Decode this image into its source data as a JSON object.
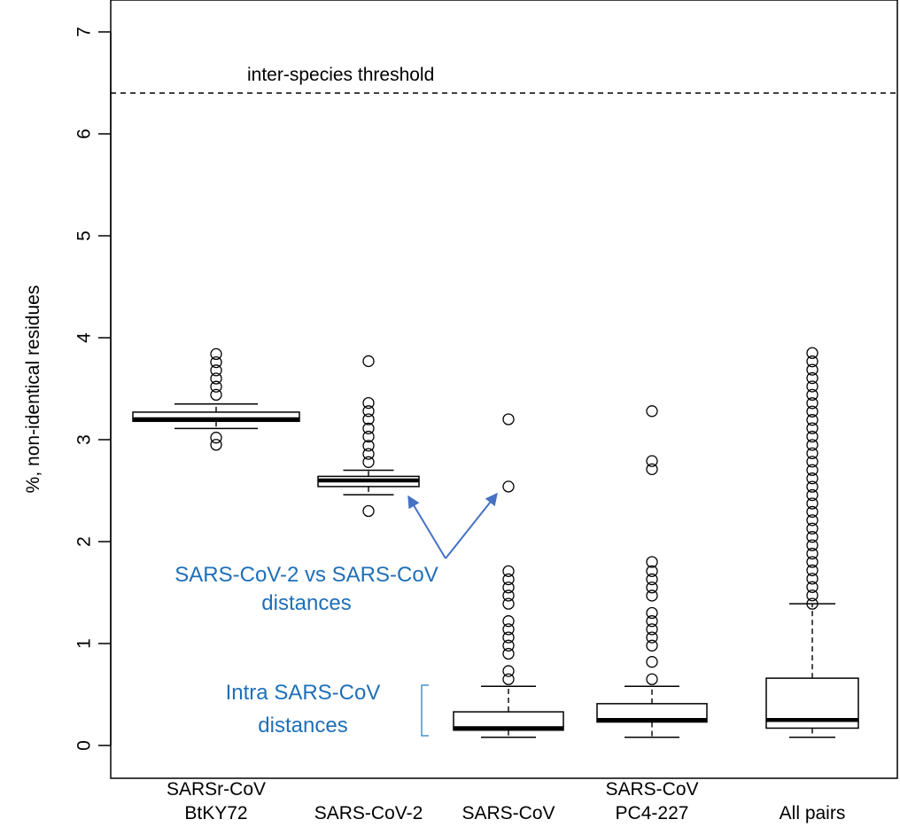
{
  "chart_data": {
    "type": "boxplot",
    "ylabel": "%, non-identical residues",
    "ylim": [
      0,
      7
    ],
    "yticks": [
      "0",
      "1",
      "2",
      "3",
      "4",
      "5",
      "6",
      "7"
    ],
    "grid": false,
    "categories": [
      [
        "SARSr-CoV",
        "BtKY72"
      ],
      [
        "SARS-CoV-2"
      ],
      [
        "SARS-CoV"
      ],
      [
        "SARS-CoV",
        "PC4-227"
      ],
      [
        "All pairs"
      ]
    ],
    "boxes": [
      {
        "q1": 3.18,
        "median": 3.2,
        "q3": 3.27,
        "whisker_low": 3.11,
        "whisker_high": 3.35,
        "outliers": [
          2.95,
          3.02,
          3.44,
          3.52,
          3.6,
          3.68,
          3.76,
          3.84
        ]
      },
      {
        "q1": 2.54,
        "median": 2.6,
        "q3": 2.64,
        "whisker_low": 2.46,
        "whisker_high": 2.7,
        "outliers": [
          2.3,
          2.78,
          2.86,
          2.94,
          3.03,
          3.11,
          3.2,
          3.28,
          3.36,
          3.77
        ]
      },
      {
        "q1": 0.15,
        "median": 0.17,
        "q3": 0.33,
        "whisker_low": 0.08,
        "whisker_high": 0.58,
        "outliers": [
          0.65,
          0.73,
          0.9,
          0.98,
          1.06,
          1.14,
          1.22,
          1.39,
          1.47,
          1.55,
          1.63,
          1.71,
          2.54,
          3.2
        ]
      },
      {
        "q1": 0.23,
        "median": 0.25,
        "q3": 0.41,
        "whisker_low": 0.08,
        "whisker_high": 0.58,
        "outliers": [
          0.65,
          0.82,
          0.98,
          1.06,
          1.14,
          1.22,
          1.3,
          1.47,
          1.55,
          1.63,
          1.71,
          1.8,
          2.71,
          2.79,
          3.28
        ]
      },
      {
        "q1": 0.17,
        "median": 0.25,
        "q3": 0.66,
        "whisker_low": 0.08,
        "whisker_high": 1.39,
        "outlier_range": [
          1.39,
          3.85
        ],
        "outlier_step": 0.082
      }
    ],
    "threshold": {
      "value": 6.4,
      "label": "inter-species threshold"
    },
    "annotations": [
      {
        "lines": [
          "SARS-CoV-2 vs SARS-CoV",
          "distances"
        ],
        "color": "#1f6fb8",
        "points_to": "arrows to SARS-CoV-2 box and SARS-CoV outlier 2.54"
      },
      {
        "lines": [
          "Intra SARS-CoV",
          "distances"
        ],
        "color": "#1f6fb8",
        "points_to": "bracket from 0.1 to 0.7"
      }
    ]
  }
}
